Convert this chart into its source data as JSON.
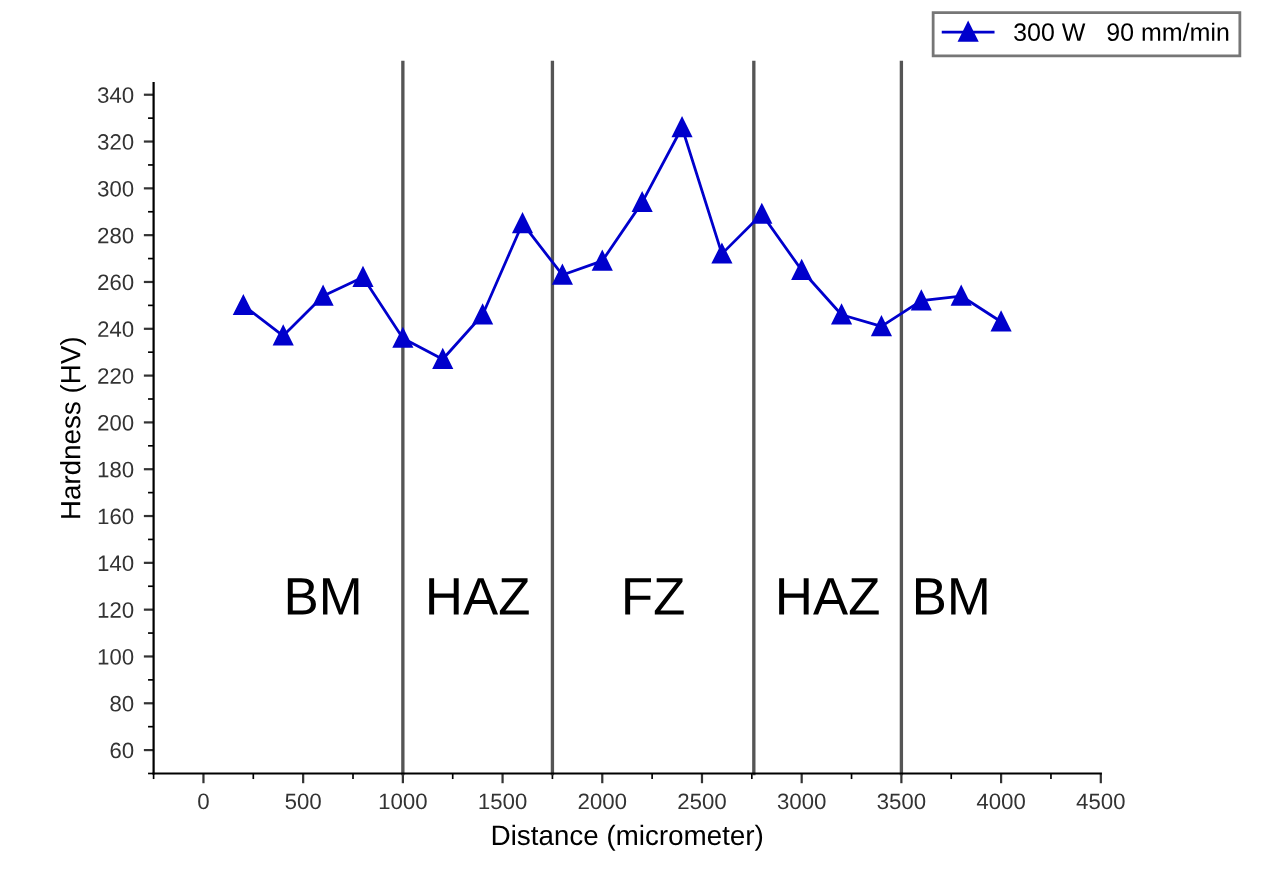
{
  "chart_data": {
    "type": "line",
    "xlabel": "Distance (micrometer)",
    "ylabel": "Hardness (HV)",
    "x": [
      200,
      400,
      600,
      800,
      1000,
      1200,
      1400,
      1600,
      1800,
      2000,
      2200,
      2400,
      2600,
      2800,
      3000,
      3200,
      3400,
      3600,
      3800,
      4000
    ],
    "series": [
      {
        "name": "300 W   90 mm/min",
        "color": "#0000cc",
        "values": [
          250,
          237,
          254,
          262,
          236,
          227,
          246,
          285,
          263,
          269,
          294,
          326,
          272,
          289,
          265,
          246,
          241,
          252,
          254,
          243
        ]
      }
    ],
    "xlim": [
      -250,
      4500
    ],
    "xticks": [
      0,
      500,
      1000,
      1500,
      2000,
      2500,
      3000,
      3500,
      4000,
      4500
    ],
    "ylim": [
      50,
      345
    ],
    "yticks": [
      60,
      80,
      100,
      120,
      140,
      160,
      180,
      200,
      220,
      240,
      260,
      280,
      300,
      320,
      340
    ],
    "ref_lines": [
      {
        "axis": "x",
        "value": 1000,
        "color": "#555555"
      },
      {
        "axis": "x",
        "value": 1750,
        "color": "#555555"
      },
      {
        "axis": "x",
        "value": 2760,
        "color": "#555555"
      },
      {
        "axis": "x",
        "value": 3500,
        "color": "#555555"
      }
    ],
    "annotations": [
      "BM",
      "HAZ",
      "FZ",
      "HAZ",
      "BM"
    ],
    "marker": "triangle",
    "line_style": "solid",
    "grid": false,
    "legend": "top right"
  }
}
